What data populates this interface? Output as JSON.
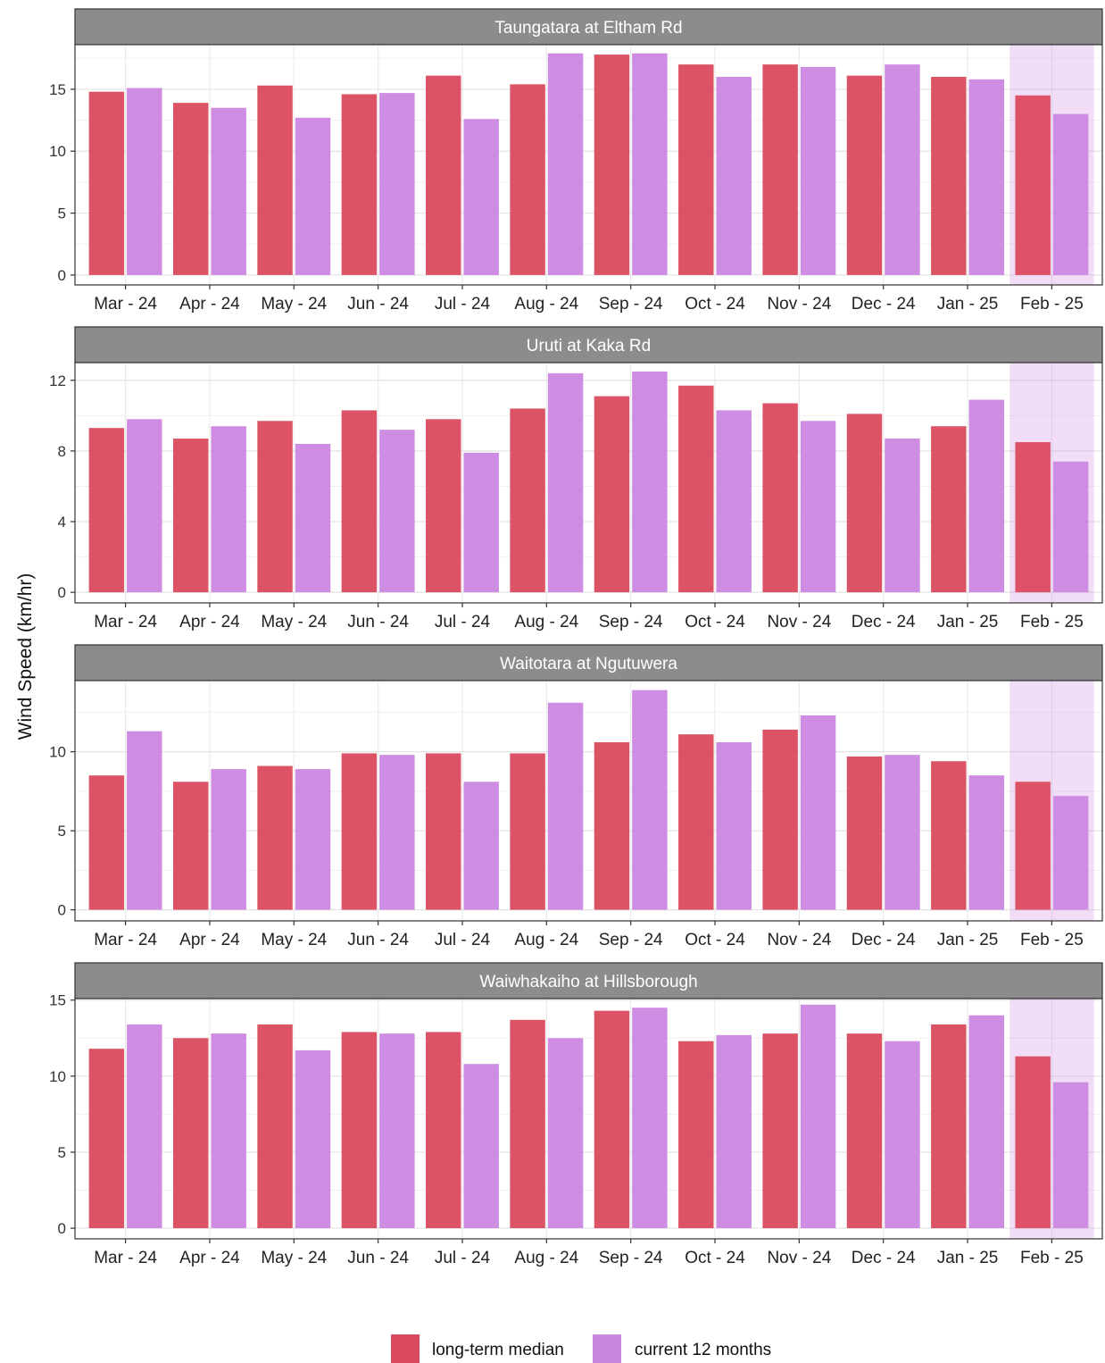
{
  "chart_data": {
    "type": "bar",
    "ylabel": "Wind Speed (km/hr)",
    "categories": [
      "Mar - 24",
      "Apr - 24",
      "May - 24",
      "Jun - 24",
      "Jul - 24",
      "Aug - 24",
      "Sep - 24",
      "Oct - 24",
      "Nov - 24",
      "Dec - 24",
      "Jan - 25",
      "Feb - 25"
    ],
    "highlight_category": "Feb - 25",
    "legend": {
      "position": "bottom",
      "items": [
        {
          "label": "long-term median",
          "color": "#db4a5e"
        },
        {
          "label": "current 12 months",
          "color": "#cb87e0"
        }
      ]
    },
    "grid": true,
    "panels": [
      {
        "title": "Taungatara at Eltham Rd",
        "ylim": [
          -0.8,
          18.6
        ],
        "yticks": [
          0,
          5,
          10,
          15
        ],
        "series": [
          {
            "name": "long-term median",
            "values": [
              14.8,
              13.9,
              15.3,
              14.6,
              16.1,
              15.4,
              17.8,
              17.0,
              17.0,
              16.1,
              16.0,
              14.5
            ]
          },
          {
            "name": "current 12 months",
            "values": [
              15.1,
              13.5,
              12.7,
              14.7,
              12.6,
              17.9,
              17.9,
              16.0,
              16.8,
              17.0,
              15.8,
              13.0
            ]
          }
        ]
      },
      {
        "title": "Uruti at Kaka Rd",
        "ylim": [
          -0.6,
          13.0
        ],
        "yticks": [
          0,
          4,
          8,
          12
        ],
        "series": [
          {
            "name": "long-term median",
            "values": [
              9.3,
              8.7,
              9.7,
              10.3,
              9.8,
              10.4,
              11.1,
              11.7,
              10.7,
              10.1,
              9.4,
              8.5
            ]
          },
          {
            "name": "current 12 months",
            "values": [
              9.8,
              9.4,
              8.4,
              9.2,
              7.9,
              12.4,
              12.5,
              10.3,
              9.7,
              8.7,
              10.9,
              7.4
            ]
          }
        ]
      },
      {
        "title": "Waitotara at Ngutuwera",
        "ylim": [
          -0.7,
          14.5
        ],
        "yticks": [
          0,
          5,
          10
        ],
        "series": [
          {
            "name": "long-term median",
            "values": [
              8.5,
              8.1,
              9.1,
              9.9,
              9.9,
              9.9,
              10.6,
              11.1,
              11.4,
              9.7,
              9.4,
              8.1
            ]
          },
          {
            "name": "current 12 months",
            "values": [
              11.3,
              8.9,
              8.9,
              9.8,
              8.1,
              13.1,
              13.9,
              10.6,
              12.3,
              9.8,
              8.5,
              7.2
            ]
          }
        ]
      },
      {
        "title": "Waiwhakaiho at Hillsborough",
        "ylim": [
          -0.7,
          15.1
        ],
        "yticks": [
          0,
          5,
          10,
          15
        ],
        "series": [
          {
            "name": "long-term median",
            "values": [
              11.8,
              12.5,
              13.4,
              12.9,
              12.9,
              13.7,
              14.3,
              12.3,
              12.8,
              12.8,
              13.4,
              11.3
            ]
          },
          {
            "name": "current 12 months",
            "values": [
              13.4,
              12.8,
              11.7,
              12.8,
              10.8,
              12.5,
              14.5,
              12.7,
              14.7,
              12.3,
              14.0,
              9.6
            ]
          }
        ]
      }
    ]
  }
}
